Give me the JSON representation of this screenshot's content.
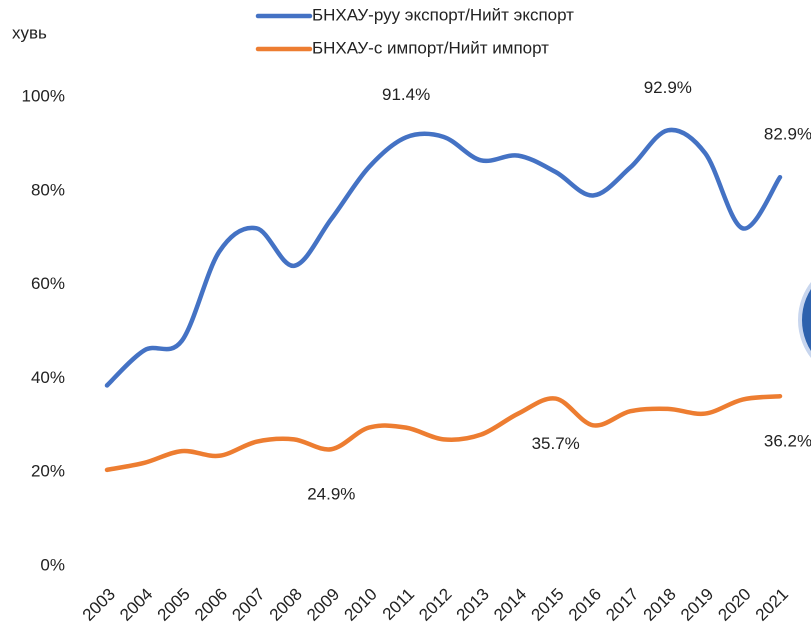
{
  "chart_data": {
    "type": "line",
    "y_axis_label": "хувь",
    "categories": [
      "2003",
      "2004",
      "2005",
      "2006",
      "2007",
      "2008",
      "2009",
      "2010",
      "2011",
      "2012",
      "2013",
      "2014",
      "2015",
      "2016",
      "2017",
      "2018",
      "2019",
      "2020",
      "2021"
    ],
    "series": [
      {
        "name": "БНХАУ-руу экспорт/Нийт экспорт",
        "color": "#4472c4",
        "values": [
          38.5,
          46,
          48,
          67,
          72,
          64,
          74,
          85,
          91.4,
          91.5,
          86.5,
          87.5,
          84,
          79,
          85,
          92.9,
          88,
          72,
          82.9
        ],
        "value_labels": [
          null,
          null,
          null,
          null,
          null,
          null,
          null,
          null,
          "91.4%",
          null,
          null,
          null,
          null,
          null,
          null,
          "92.9%",
          null,
          null,
          "82.9%"
        ]
      },
      {
        "name": "БНХАУ-с импорт/Нийт импорт",
        "color": "#ed7d31",
        "values": [
          20.5,
          22,
          24.5,
          23.5,
          26.5,
          27,
          24.9,
          29.5,
          29.5,
          27,
          28,
          32.5,
          35.7,
          30,
          33,
          33.5,
          32.5,
          35.5,
          36.2
        ],
        "value_labels": [
          null,
          null,
          null,
          null,
          null,
          null,
          "24.9%",
          null,
          null,
          null,
          null,
          null,
          "35.7%",
          null,
          null,
          null,
          null,
          null,
          "36.2%"
        ]
      }
    ],
    "ylim": [
      0,
      100
    ],
    "yticks": [
      {
        "value": 0,
        "label": "0%"
      },
      {
        "value": 20,
        "label": "20%"
      },
      {
        "value": 40,
        "label": "40%"
      },
      {
        "value": 60,
        "label": "60%"
      },
      {
        "value": 80,
        "label": "80%"
      },
      {
        "value": 100,
        "label": "100%"
      }
    ],
    "grid": false,
    "legend": "top"
  }
}
